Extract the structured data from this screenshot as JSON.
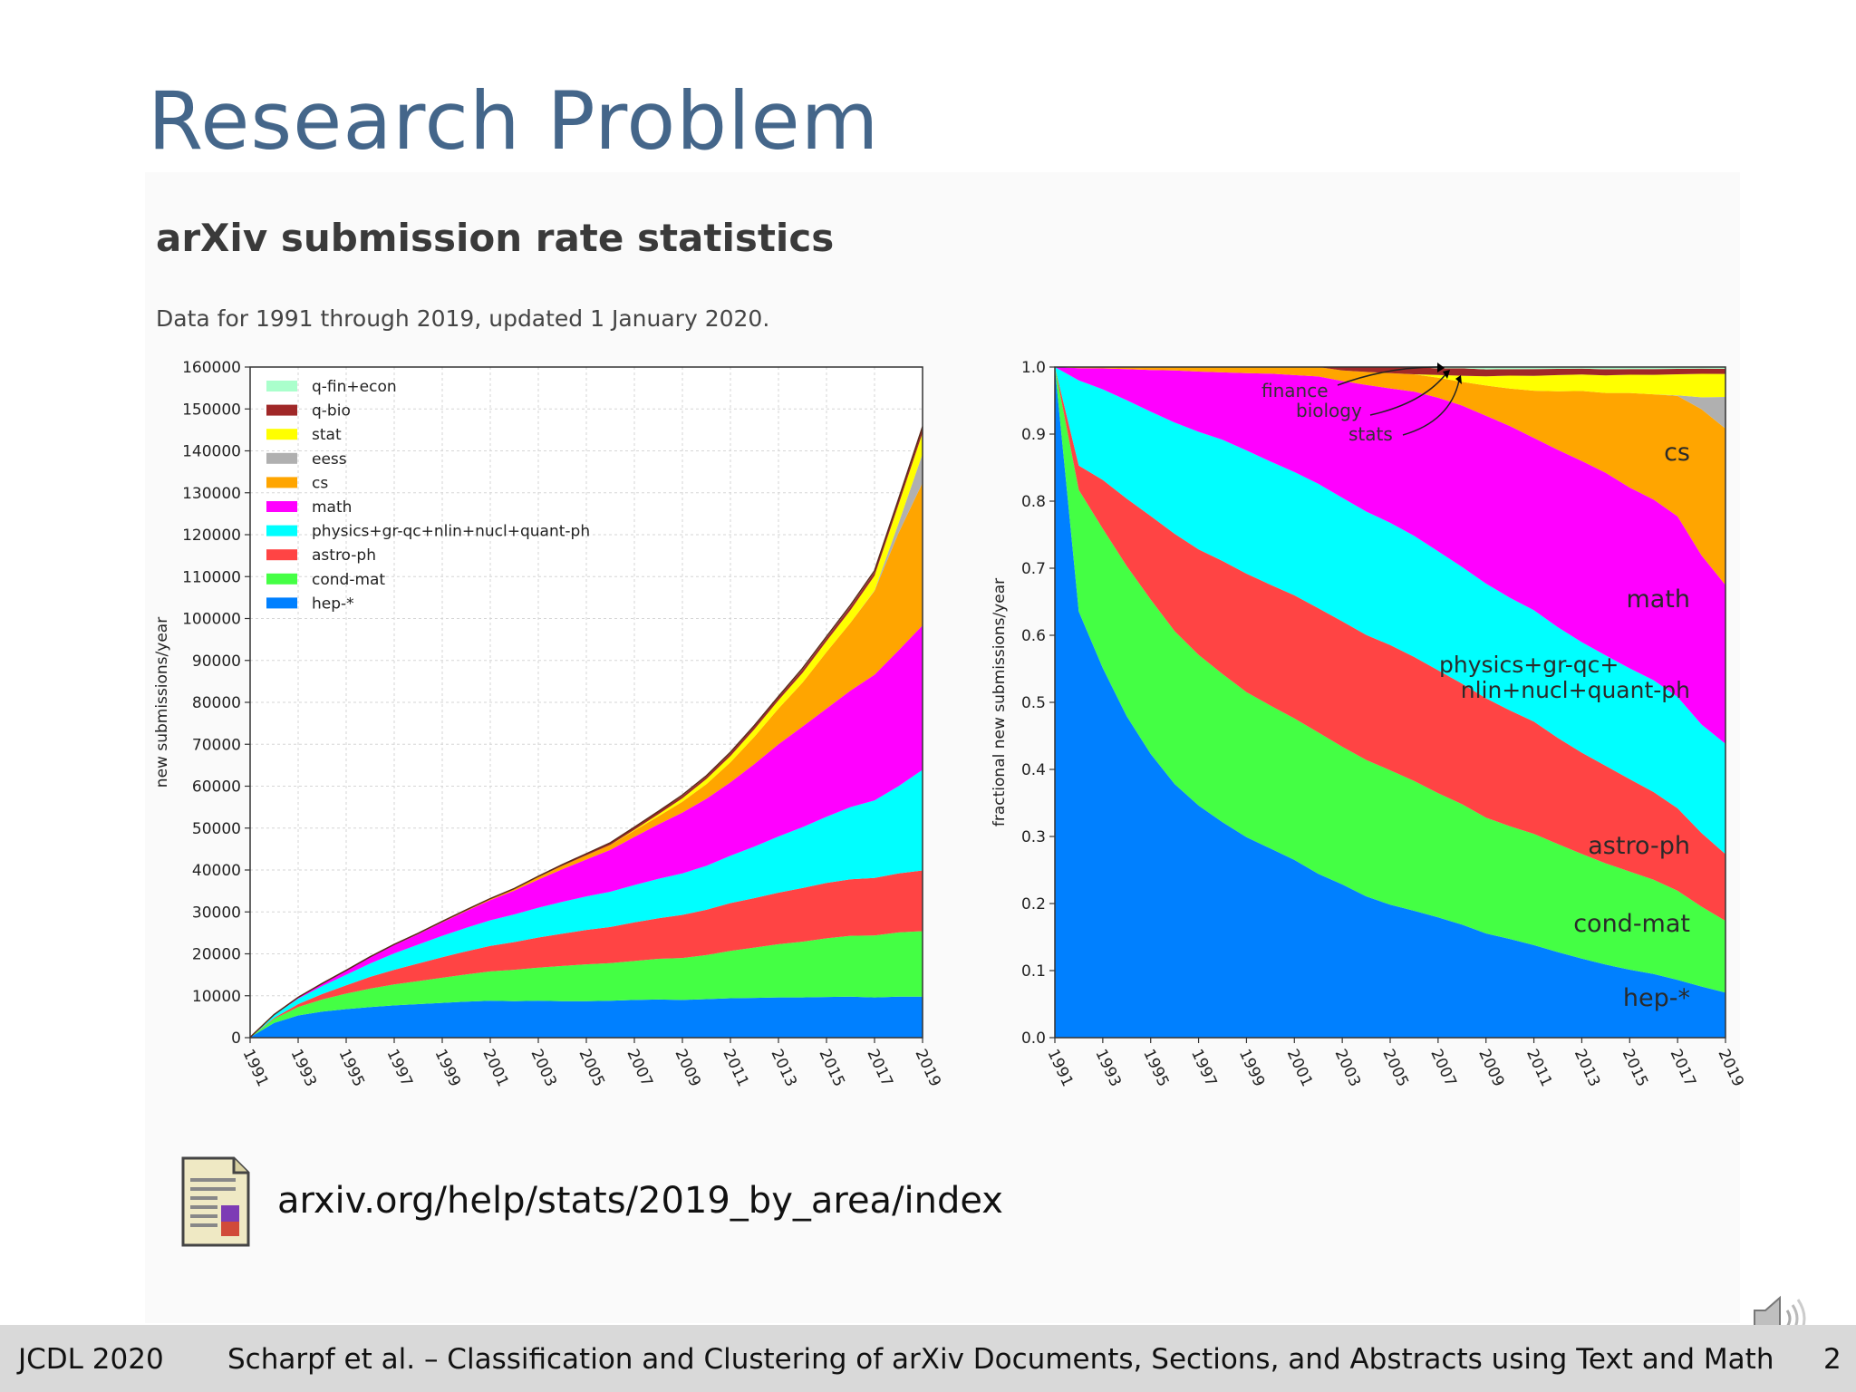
{
  "slide": {
    "title": "Research Problem",
    "heading": "arXiv submission rate statistics",
    "subheading": "Data for 1991 through 2019, updated 1 January 2020.",
    "link_text": "arxiv.org/help/stats/2019_by_area/index",
    "footer": {
      "conference": "JCDL 2020",
      "authors_title": "Scharpf et al. – Classification and Clustering of arXiv Documents, Sections, and Abstracts using Text and Math",
      "page_number": "2"
    }
  },
  "chart_data": [
    {
      "type": "area",
      "stacked": true,
      "title": "",
      "xlabel": "",
      "ylabel": "new submissions/year",
      "xlim": [
        1991,
        2019
      ],
      "ylim": [
        0,
        160000
      ],
      "x": [
        1991,
        1992,
        1993,
        1994,
        1995,
        1996,
        1997,
        1998,
        1999,
        2000,
        2001,
        2002,
        2003,
        2004,
        2005,
        2006,
        2007,
        2008,
        2009,
        2010,
        2011,
        2012,
        2013,
        2014,
        2015,
        2016,
        2017,
        2018,
        2019
      ],
      "x_ticks": [
        "1991",
        "1993",
        "1995",
        "1997",
        "1999",
        "2001",
        "2003",
        "2005",
        "2007",
        "2009",
        "2011",
        "2013",
        "2015",
        "2017",
        "2019"
      ],
      "y_ticks": [
        "0",
        "10000",
        "20000",
        "30000",
        "40000",
        "50000",
        "60000",
        "70000",
        "80000",
        "90000",
        "100000",
        "110000",
        "120000",
        "130000",
        "140000",
        "150000",
        "160000"
      ],
      "grid": true,
      "legend_position": "top-left",
      "series": [
        {
          "name": "hep-*",
          "color": "#0080ff",
          "values": [
            100,
            3500,
            5300,
            6200,
            6800,
            7300,
            7700,
            8000,
            8300,
            8600,
            8800,
            8700,
            8800,
            8700,
            8700,
            8800,
            9000,
            9100,
            9000,
            9200,
            9400,
            9500,
            9600,
            9600,
            9700,
            9800,
            9600,
            9800,
            9800
          ]
        },
        {
          "name": "cond-mat",
          "color": "#44ff44",
          "values": [
            0,
            1000,
            2000,
            2900,
            3700,
            4400,
            5000,
            5500,
            6000,
            6500,
            7000,
            7500,
            7900,
            8400,
            8800,
            9000,
            9300,
            9700,
            10000,
            10500,
            11300,
            12000,
            12700,
            13300,
            14000,
            14500,
            14800,
            15300,
            15600
          ]
        },
        {
          "name": "astro-ph",
          "color": "#ff4444",
          "values": [
            0,
            200,
            700,
            1300,
            2000,
            2800,
            3500,
            4200,
            4900,
            5500,
            6100,
            6600,
            7200,
            7700,
            8200,
            8600,
            9200,
            9700,
            10300,
            10800,
            11400,
            11800,
            12300,
            12800,
            13200,
            13500,
            13700,
            14100,
            14500
          ]
        },
        {
          "name": "physics+gr-qc+nlin+nucl+quant-ph",
          "color": "#00ffff",
          "values": [
            0,
            700,
            1300,
            1900,
            2500,
            3200,
            3900,
            4500,
            5100,
            5600,
            6100,
            6600,
            7100,
            7600,
            8000,
            8400,
            8900,
            9400,
            9900,
            10500,
            11300,
            12300,
            13400,
            14500,
            15800,
            17200,
            18500,
            20800,
            24000
          ]
        },
        {
          "name": "math",
          "color": "#ff00ff",
          "values": [
            0,
            100,
            300,
            600,
            1000,
            1500,
            2000,
            2500,
            3200,
            4000,
            4800,
            5700,
            6700,
            7800,
            8800,
            10000,
            11500,
            13000,
            14500,
            16000,
            17500,
            19700,
            22000,
            24000,
            25800,
            27800,
            30000,
            32400,
            34500
          ]
        },
        {
          "name": "cs",
          "color": "#ffa500",
          "values": [
            0,
            10,
            20,
            40,
            70,
            100,
            150,
            200,
            250,
            300,
            400,
            500,
            600,
            800,
            1000,
            1200,
            1500,
            1900,
            2600,
            3500,
            4800,
            6500,
            8500,
            10500,
            13500,
            16200,
            20000,
            28000,
            34000
          ]
        },
        {
          "name": "eess",
          "color": "#b0b0b0",
          "values": [
            0,
            0,
            0,
            0,
            0,
            0,
            0,
            0,
            0,
            0,
            0,
            0,
            0,
            0,
            0,
            0,
            0,
            0,
            0,
            0,
            0,
            0,
            0,
            0,
            0,
            0,
            100,
            2300,
            6900
          ]
        },
        {
          "name": "stat",
          "color": "#ffff00",
          "values": [
            0,
            0,
            0,
            0,
            0,
            0,
            0,
            0,
            0,
            0,
            0,
            0,
            0,
            0,
            0,
            0,
            200,
            500,
            800,
            1200,
            1500,
            1800,
            2000,
            2300,
            2600,
            3000,
            3500,
            4500,
            5000
          ]
        },
        {
          "name": "q-bio",
          "color": "#a02828",
          "values": [
            0,
            0,
            0,
            0,
            0,
            0,
            0,
            0,
            0,
            0,
            0,
            0,
            200,
            300,
            400,
            500,
            500,
            600,
            600,
            600,
            700,
            700,
            700,
            800,
            800,
            900,
            900,
            1000,
            1100
          ]
        },
        {
          "name": "q-fin+econ",
          "color": "#aaffcc",
          "values": [
            0,
            0,
            0,
            0,
            0,
            0,
            0,
            0,
            0,
            0,
            0,
            0,
            0,
            0,
            0,
            0,
            100,
            100,
            200,
            200,
            200,
            200,
            200,
            300,
            300,
            300,
            300,
            300,
            400
          ]
        }
      ]
    },
    {
      "type": "area",
      "stacked": true,
      "normalized": true,
      "title": "",
      "xlabel": "",
      "ylabel": "fractional new submissions/year",
      "xlim": [
        1991,
        2019
      ],
      "ylim": [
        0,
        1.0
      ],
      "x_ticks": [
        "1991",
        "1993",
        "1995",
        "1997",
        "1999",
        "2001",
        "2003",
        "2005",
        "2007",
        "2009",
        "2011",
        "2013",
        "2015",
        "2017",
        "2019"
      ],
      "y_ticks": [
        "0.0",
        "0.1",
        "0.2",
        "0.3",
        "0.4",
        "0.5",
        "0.6",
        "0.7",
        "0.8",
        "0.9",
        "1.0"
      ],
      "grid": false,
      "source": "same series as first chart, each year divided by its total",
      "labels": [
        "hep-*",
        "cond-mat",
        "astro-ph",
        "physics+gr-qc+",
        "nlin+nucl+quant-ph",
        "math",
        "cs"
      ],
      "annotations": [
        "finance",
        "biology",
        "stats"
      ]
    }
  ]
}
